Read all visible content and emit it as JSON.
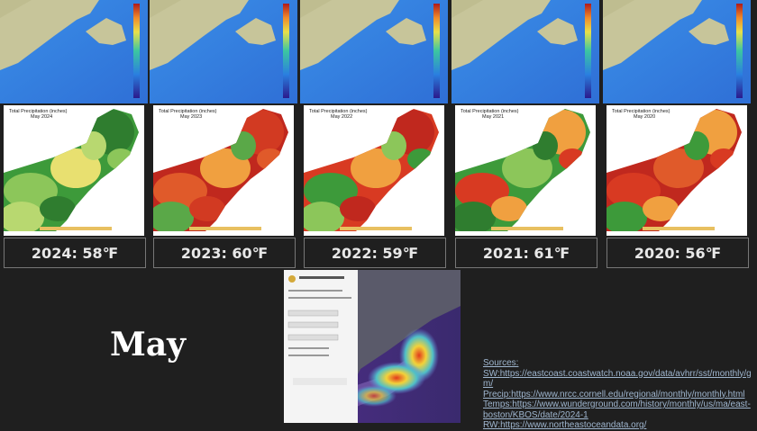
{
  "precip_maps": [
    {
      "title": "Total Precipitation (inches)",
      "subtitle": "May 2024"
    },
    {
      "title": "Total Precipitation (inches)",
      "subtitle": "May 2023"
    },
    {
      "title": "Total Precipitation (inches)",
      "subtitle": "May 2022"
    },
    {
      "title": "Total Precipitation (inches)",
      "subtitle": "May 2021"
    },
    {
      "title": "Total Precipitation (inches)",
      "subtitle": "May 2020"
    }
  ],
  "temps": [
    "2024: 58℉",
    "2023: 60℉",
    "2022: 59℉",
    "2021: 61℉",
    "2020: 56℉"
  ],
  "month": "May",
  "sources": {
    "heading": "Sources:",
    "lines": [
      "SW:https://eastcoast.coastwatch.noaa.gov/data/avhrr/sst/monthly/gm/",
      "Precip:https://www.nrcc.cornell.edu/regional/monthly/monthly.html",
      "Temps:https://www.wunderground.com/history/monthly/us/ma/east-boston/KBOS/date/2024-1",
      "RW:https://www.northeastoceandata.org/"
    ]
  }
}
